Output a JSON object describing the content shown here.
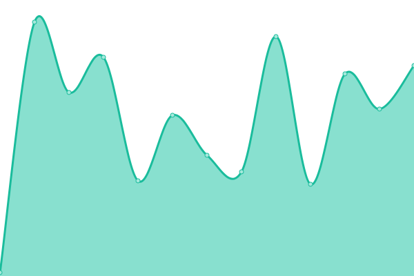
{
  "chart_data": {
    "type": "area",
    "title": "",
    "xlabel": "",
    "ylabel": "",
    "x": [
      0,
      1,
      2,
      3,
      4,
      5,
      6,
      7,
      8,
      9,
      10,
      11,
      12
    ],
    "series": [
      {
        "values": [
          5,
          368,
          266,
          317,
          138,
          233,
          175,
          151,
          347,
          133,
          293,
          242,
          305
        ]
      }
    ],
    "xlim": [
      0,
      12
    ],
    "ylim": [
      0,
      400
    ],
    "grid": false,
    "axes_visible": false,
    "curve": "smooth",
    "colors": {
      "line": "#1abc9c",
      "fill": "#88e0cf",
      "point_fill": "#a6e9dc"
    }
  }
}
